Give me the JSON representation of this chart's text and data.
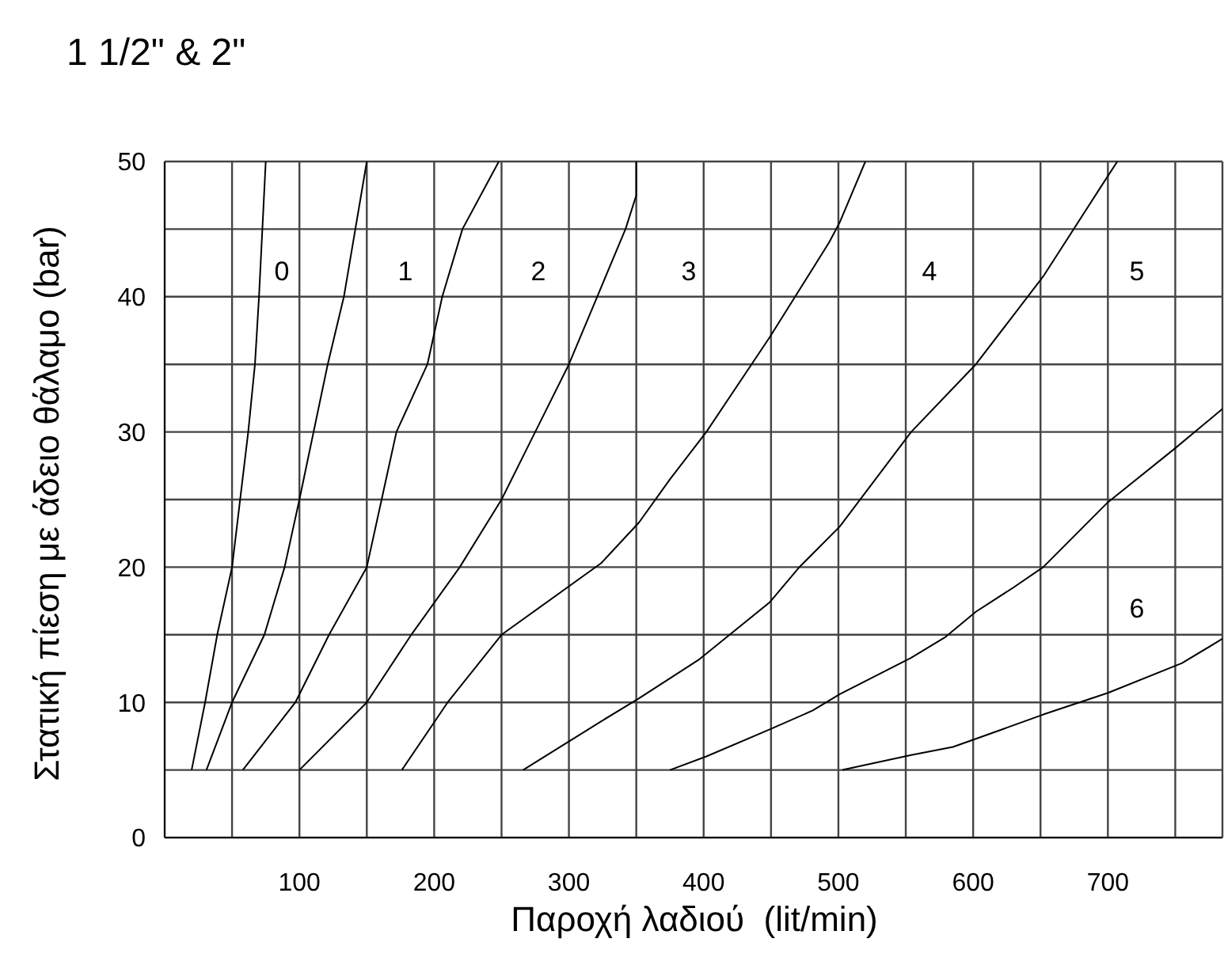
{
  "chart_data": {
    "type": "line",
    "title": "1 1/2\" & 2\"",
    "xlabel": "Παροχή λαδιού  (lit/min)",
    "ylabel": "Στατική πίεση με άδειο θάλαμο (bar)",
    "xlim": [
      0,
      785
    ],
    "ylim": [
      0,
      50
    ],
    "xticks": [
      {
        "value": 50,
        "label": null
      },
      100,
      {
        "value": 150,
        "label": null
      },
      200,
      {
        "value": 250,
        "label": null
      },
      300,
      {
        "value": 350,
        "label": null
      },
      400,
      {
        "value": 450,
        "label": null
      },
      500,
      {
        "value": 550,
        "label": null
      },
      600,
      {
        "value": 650,
        "label": null
      },
      700,
      {
        "value": 750,
        "label": null
      }
    ],
    "yticks": [
      0,
      {
        "value": 5,
        "label": null
      },
      10,
      {
        "value": 15,
        "label": null
      },
      20,
      {
        "value": 25,
        "label": null
      },
      30,
      {
        "value": 35,
        "label": null
      },
      40,
      {
        "value": 45,
        "label": null
      },
      50
    ],
    "grid": true,
    "legend": false,
    "marker": "none",
    "line_style": "solid",
    "series": [
      {
        "color": "#000000",
        "x": [
          20,
          30,
          39,
          50,
          62,
          67,
          70,
          75
        ],
        "values": [
          5,
          10,
          15,
          20,
          30,
          35,
          40,
          50
        ]
      },
      {
        "color": "#000000",
        "x": [
          31,
          50,
          74,
          89,
          100,
          121,
          133,
          150
        ],
        "values": [
          5,
          10,
          15,
          20,
          25,
          35,
          40,
          50
        ]
      },
      {
        "color": "#000000",
        "x": [
          58,
          97,
          122,
          150,
          161,
          172,
          195,
          206,
          221,
          248
        ],
        "values": [
          5,
          10,
          15,
          20,
          25,
          30,
          35,
          40,
          45,
          50
        ]
      },
      {
        "color": "#000000",
        "x": [
          100,
          150,
          183,
          219,
          250,
          275,
          300,
          321,
          342,
          350,
          350
        ],
        "values": [
          5,
          10,
          15,
          20,
          25,
          30,
          35,
          40,
          45,
          47.5,
          50
        ]
      },
      {
        "color": "#000000",
        "x": [
          176,
          210,
          250,
          324,
          352,
          375,
          402,
          449,
          493,
          501,
          520
        ],
        "values": [
          5,
          10,
          15,
          20.3,
          23.3,
          26.5,
          30,
          37,
          44,
          45.5,
          50
        ]
      },
      {
        "color": "#000000",
        "x": [
          266,
          324,
          352,
          397,
          449,
          471,
          501,
          554,
          602,
          652,
          694,
          707
        ],
        "values": [
          5,
          8.6,
          10.3,
          13.2,
          17.4,
          20,
          23,
          30,
          35,
          41.5,
          48,
          50
        ]
      },
      {
        "color": "#000000",
        "x": [
          375,
          402,
          449,
          481,
          501,
          554,
          579,
          602,
          630,
          652,
          700,
          750,
          785
        ],
        "values": [
          5,
          6,
          8,
          9.4,
          10.6,
          13.3,
          14.8,
          16.7,
          18.5,
          20,
          24.8,
          28.8,
          31.7
        ]
      },
      {
        "color": "#000000",
        "x": [
          503,
          554,
          585,
          602,
          652,
          700,
          755,
          785
        ],
        "values": [
          5,
          6.1,
          6.7,
          7.3,
          9.1,
          10.7,
          12.9,
          14.7
        ]
      }
    ],
    "annotations": [
      "0",
      "1",
      "2",
      "3",
      "4",
      "5",
      "6"
    ]
  }
}
